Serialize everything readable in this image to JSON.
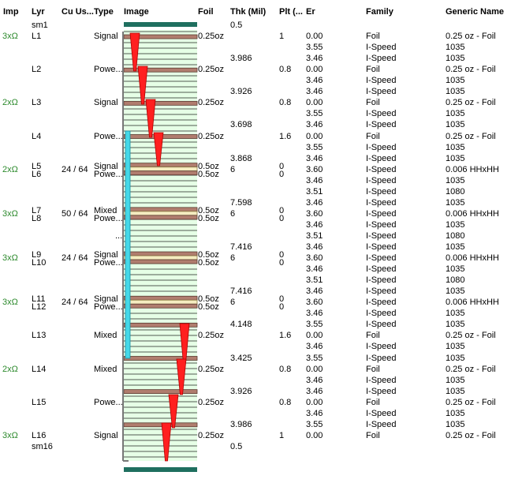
{
  "headers": {
    "imp": "Imp",
    "lyr": "Lyr",
    "cu_usage": "Cu Us...",
    "type": "Type",
    "image": "Image",
    "foil": "Foil",
    "thk": "Thk (Mil)",
    "plt": "Plt (...",
    "er": "Er",
    "family": "Family",
    "generic_name": "Generic Name"
  },
  "colors": {
    "mask": "#1f6f5f",
    "copper": "#b07d6e",
    "glass": "#e6ffe6",
    "prepreg_cu": "#f5ecc0",
    "via_fill": "#ff2020",
    "via_outline": "#b00000",
    "via_barrel": "#44d8e8",
    "impedance_text": "#2d8a2d"
  },
  "rows": [
    {
      "lyr": "sm1",
      "thk": "0.5"
    },
    {
      "imp": "3xΩ",
      "lyr": "L1",
      "type": "Signal",
      "foil": "0.25oz",
      "plt": "1",
      "er": "0.00",
      "family": "Foil",
      "generic": "0.25 oz - Foil"
    },
    {
      "er": "3.55",
      "family": "I-Speed",
      "generic": "1035"
    },
    {
      "thk": "3.986",
      "er": "3.46",
      "family": "I-Speed",
      "generic": "1035"
    },
    {
      "lyr": "L2",
      "type": "Powe...",
      "foil": "0.25oz",
      "plt": "0.8",
      "er": "0.00",
      "family": "Foil",
      "generic": "0.25 oz - Foil"
    },
    {
      "er": "3.46",
      "family": "I-Speed",
      "generic": "1035"
    },
    {
      "thk": "3.926",
      "er": "3.46",
      "family": "I-Speed",
      "generic": "1035"
    },
    {
      "imp": "2xΩ",
      "lyr": "L3",
      "type": "Signal",
      "foil": "0.25oz",
      "plt": "0.8",
      "er": "0.00",
      "family": "Foil",
      "generic": "0.25 oz - Foil"
    },
    {
      "er": "3.55",
      "family": "I-Speed",
      "generic": "1035"
    },
    {
      "thk": "3.698",
      "er": "3.46",
      "family": "I-Speed",
      "generic": "1035"
    },
    {
      "lyr": "L4",
      "type": "Powe...",
      "foil": "0.25oz",
      "plt": "1.6",
      "er": "0.00",
      "family": "Foil",
      "generic": "0.25 oz - Foil"
    },
    {
      "er": "3.55",
      "family": "I-Speed",
      "generic": "1035"
    },
    {
      "thk": "3.868",
      "er": "3.46",
      "family": "I-Speed",
      "generic": "1035"
    },
    {
      "imp": "2xΩ",
      "lyr": "L5",
      "lyr2": "L6",
      "cu": "24 / 64",
      "type": "Signal",
      "type2": "Powe...",
      "foil": "0.5oz",
      "foil2": "0.5oz",
      "thk": "6",
      "plt": "0",
      "plt2": "0",
      "er": "3.60",
      "family": "I-Speed",
      "generic": "0.006 HHxHH"
    },
    {
      "er": "3.46",
      "family": "I-Speed",
      "generic": "1035"
    },
    {
      "er": "3.51",
      "family": "I-Speed",
      "generic": "1080"
    },
    {
      "thk": "7.598",
      "er": "3.46",
      "family": "I-Speed",
      "generic": "1035"
    },
    {
      "imp": "3xΩ",
      "lyr": "L7",
      "lyr2": "L8",
      "cu": "50 / 64",
      "type": "Mixed",
      "type2": "Powe...",
      "foil": "0.5oz",
      "foil2": "0.5oz",
      "thk": "6",
      "plt": "0",
      "plt2": "0",
      "er": "3.60",
      "family": "I-Speed",
      "generic": "0.006 HHxHH"
    },
    {
      "er": "3.46",
      "family": "I-Speed",
      "generic": "1035"
    },
    {
      "type": "...",
      "er": "3.51",
      "family": "I-Speed",
      "generic": "1080"
    },
    {
      "thk": "7.416",
      "er": "3.46",
      "family": "I-Speed",
      "generic": "1035"
    },
    {
      "imp": "3xΩ",
      "lyr": "L9",
      "lyr2": "L10",
      "cu": "24 / 64",
      "type": "Signal",
      "type2": "Powe...",
      "foil": "0.5oz",
      "foil2": "0.5oz",
      "thk": "6",
      "plt": "0",
      "plt2": "0",
      "er": "3.60",
      "family": "I-Speed",
      "generic": "0.006 HHxHH"
    },
    {
      "er": "3.46",
      "family": "I-Speed",
      "generic": "1035"
    },
    {
      "er": "3.51",
      "family": "I-Speed",
      "generic": "1080"
    },
    {
      "thk": "7.416",
      "er": "3.46",
      "family": "I-Speed",
      "generic": "1035"
    },
    {
      "imp": "3xΩ",
      "lyr": "L11",
      "lyr2": "L12",
      "cu": "24 / 64",
      "type": "Signal",
      "type2": "Powe...",
      "foil": "0.5oz",
      "foil2": "0.5oz",
      "thk": "6",
      "plt": "0",
      "plt2": "0",
      "er": "3.60",
      "family": "I-Speed",
      "generic": "0.006 HHxHH"
    },
    {
      "er": "3.46",
      "family": "I-Speed",
      "generic": "1035"
    },
    {
      "thk": "4.148",
      "er": "3.55",
      "family": "I-Speed",
      "generic": "1035"
    },
    {
      "lyr": "L13",
      "type": "Mixed",
      "foil": "0.25oz",
      "plt": "1.6",
      "er": "0.00",
      "family": "Foil",
      "generic": "0.25 oz - Foil"
    },
    {
      "er": "3.46",
      "family": "I-Speed",
      "generic": "1035"
    },
    {
      "thk": "3.425",
      "er": "3.55",
      "family": "I-Speed",
      "generic": "1035"
    },
    {
      "imp": "2xΩ",
      "lyr": "L14",
      "type": "Mixed",
      "foil": "0.25oz",
      "plt": "0.8",
      "er": "0.00",
      "family": "Foil",
      "generic": "0.25 oz - Foil"
    },
    {
      "er": "3.46",
      "family": "I-Speed",
      "generic": "1035"
    },
    {
      "thk": "3.926",
      "er": "3.46",
      "family": "I-Speed",
      "generic": "1035"
    },
    {
      "lyr": "L15",
      "type": "Powe...",
      "foil": "0.25oz",
      "plt": "0.8",
      "er": "0.00",
      "family": "Foil",
      "generic": "0.25 oz - Foil"
    },
    {
      "er": "3.46",
      "family": "I-Speed",
      "generic": "1035"
    },
    {
      "thk": "3.986",
      "er": "3.55",
      "family": "I-Speed",
      "generic": "1035"
    },
    {
      "imp": "3xΩ",
      "lyr": "L16",
      "type": "Signal",
      "foil": "0.25oz",
      "plt": "1",
      "er": "0.00",
      "family": "Foil",
      "generic": "0.25 oz - Foil"
    },
    {
      "lyr": "sm16",
      "thk": "0.5"
    }
  ]
}
